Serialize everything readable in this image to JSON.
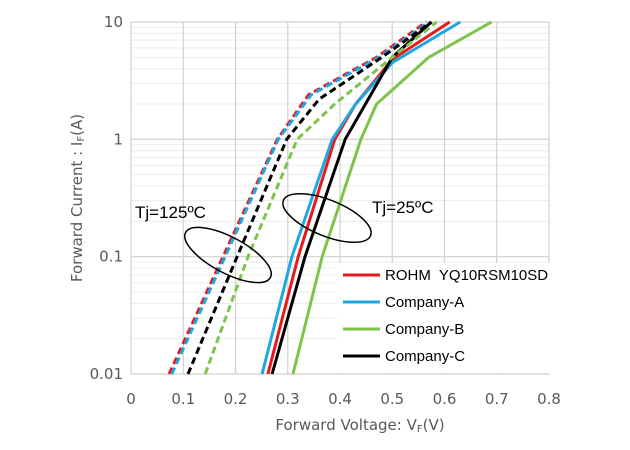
{
  "chart_data": {
    "type": "line",
    "xlabel": "Forward Voltage: V",
    "xlabel_sub": "F",
    "xlabel_unit": "(V)",
    "ylabel": "Forward Current : I",
    "ylabel_sub": "F",
    "ylabel_unit": "(A)",
    "xlim": [
      0,
      0.8
    ],
    "ylim": [
      0.01,
      10
    ],
    "yscale": "log",
    "grid": true,
    "legend_position": "bottom-right",
    "x_ticks": [
      "0",
      "0.1",
      "0.2",
      "0.3",
      "0.4",
      "0.5",
      "0.6",
      "0.7",
      "0.8"
    ],
    "y_ticks": [
      "0.01",
      "0.1",
      "1",
      "10"
    ],
    "annotations": [
      "Tj=125ºC",
      "Tj=25ºC"
    ],
    "legend": [
      {
        "name": "ROHM  YQ10RSM10SD",
        "color": "#e8191e"
      },
      {
        "name": "Company-A",
        "color": "#1ea7e1"
      },
      {
        "name": "Company-B",
        "color": "#7ec34a"
      },
      {
        "name": "Company-C",
        "color": "#000000"
      }
    ],
    "series": [
      {
        "legend": 0,
        "condition": "Tj=25ºC",
        "dash": false,
        "points": [
          [
            0.262,
            0.01
          ],
          [
            0.32,
            0.1
          ],
          [
            0.39,
            1
          ],
          [
            0.43,
            2
          ],
          [
            0.5,
            4.8
          ],
          [
            0.61,
            10
          ]
        ]
      },
      {
        "legend": 1,
        "condition": "Tj=25ºC",
        "dash": false,
        "points": [
          [
            0.251,
            0.01
          ],
          [
            0.308,
            0.1
          ],
          [
            0.385,
            1
          ],
          [
            0.43,
            2
          ],
          [
            0.5,
            4.5
          ],
          [
            0.63,
            10
          ]
        ]
      },
      {
        "legend": 2,
        "condition": "Tj=25ºC",
        "dash": false,
        "points": [
          [
            0.31,
            0.01
          ],
          [
            0.366,
            0.1
          ],
          [
            0.44,
            1
          ],
          [
            0.47,
            2
          ],
          [
            0.57,
            5
          ],
          [
            0.69,
            10
          ]
        ]
      },
      {
        "legend": 3,
        "condition": "Tj=25ºC",
        "dash": false,
        "points": [
          [
            0.27,
            0.01
          ],
          [
            0.333,
            0.1
          ],
          [
            0.41,
            1
          ],
          [
            0.5,
            5
          ],
          [
            0.575,
            10
          ]
        ]
      },
      {
        "legend": 0,
        "condition": "Tj=125ºC",
        "dash": true,
        "points": [
          [
            0.073,
            0.01
          ],
          [
            0.176,
            0.1
          ],
          [
            0.28,
            1
          ],
          [
            0.34,
            2.4
          ],
          [
            0.47,
            5
          ],
          [
            0.565,
            10
          ]
        ]
      },
      {
        "legend": 1,
        "condition": "Tj=125ºC",
        "dash": true,
        "points": [
          [
            0.078,
            0.01
          ],
          [
            0.18,
            0.1
          ],
          [
            0.282,
            1
          ],
          [
            0.345,
            2.4
          ],
          [
            0.475,
            5
          ],
          [
            0.57,
            10
          ]
        ]
      },
      {
        "legend": 2,
        "condition": "Tj=125ºC",
        "dash": true,
        "points": [
          [
            0.142,
            0.01
          ],
          [
            0.224,
            0.1
          ],
          [
            0.318,
            1
          ],
          [
            0.39,
            2
          ],
          [
            0.5,
            5
          ],
          [
            0.585,
            10
          ]
        ]
      },
      {
        "legend": 3,
        "condition": "Tj=125ºC",
        "dash": true,
        "points": [
          [
            0.109,
            0.01
          ],
          [
            0.203,
            0.1
          ],
          [
            0.298,
            1
          ],
          [
            0.36,
            2.2
          ],
          [
            0.48,
            5
          ],
          [
            0.575,
            10
          ]
        ]
      }
    ]
  }
}
